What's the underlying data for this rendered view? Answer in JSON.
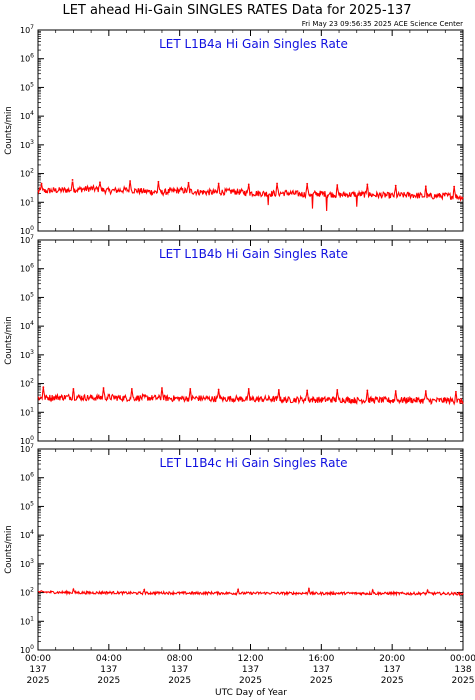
{
  "header": {
    "title": "LET ahead Hi-Gain SINGLES RATES Data for 2025-137",
    "timestamp": "Fri May 23 09:56:35 2025 ACE Science Center"
  },
  "colors": {
    "series": "#ff0000",
    "panel_title": "#1010e0",
    "axes": "#000000"
  },
  "chart_data": [
    {
      "type": "line",
      "title": "LET L1B4a Hi Gain Singles Rate",
      "ylabel": "Counts/min",
      "yscale": "log",
      "ylim": [
        1,
        10000000
      ],
      "ytick_labels": [
        {
          "base": "10",
          "exp": "0"
        },
        {
          "base": "10",
          "exp": "1"
        },
        {
          "base": "10",
          "exp": "2"
        },
        {
          "base": "10",
          "exp": "3"
        },
        {
          "base": "10",
          "exp": "4"
        },
        {
          "base": "10",
          "exp": "5"
        },
        {
          "base": "10",
          "exp": "6"
        },
        {
          "base": "10",
          "exp": "7"
        }
      ],
      "x": [
        0,
        1,
        2,
        3,
        4,
        5,
        6,
        7,
        8,
        9,
        10,
        11,
        12,
        13,
        14,
        15,
        16,
        17,
        18,
        19,
        20,
        21,
        22,
        23,
        24
      ],
      "series": [
        {
          "values": [
            24,
            26,
            27,
            30,
            25,
            27,
            24,
            22,
            26,
            23,
            22,
            24,
            21,
            20,
            21,
            19,
            20,
            18,
            19,
            18,
            17,
            18,
            16,
            17,
            15
          ]
        }
      ],
      "spikes": [
        {
          "x": 0.2,
          "y": 45
        },
        {
          "x": 1.95,
          "y": 60
        },
        {
          "x": 3.5,
          "y": 50
        },
        {
          "x": 5.2,
          "y": 55
        },
        {
          "x": 6.8,
          "y": 52
        },
        {
          "x": 8.5,
          "y": 48
        },
        {
          "x": 10.2,
          "y": 45
        },
        {
          "x": 11.9,
          "y": 42
        },
        {
          "x": 13.5,
          "y": 45
        },
        {
          "x": 15.2,
          "y": 44
        },
        {
          "x": 16.9,
          "y": 40
        },
        {
          "x": 18.6,
          "y": 42
        },
        {
          "x": 20.2,
          "y": 38
        },
        {
          "x": 21.9,
          "y": 36
        },
        {
          "x": 23.5,
          "y": 35
        }
      ],
      "dips": [
        {
          "x": 13.0,
          "y": 8
        },
        {
          "x": 15.5,
          "y": 6
        },
        {
          "x": 16.3,
          "y": 5
        },
        {
          "x": 18.0,
          "y": 7
        }
      ]
    },
    {
      "type": "line",
      "title": "LET L1B4b Hi Gain Singles Rate",
      "ylabel": "Counts/min",
      "yscale": "log",
      "ylim": [
        1,
        10000000
      ],
      "ytick_labels": [
        {
          "base": "10",
          "exp": "0"
        },
        {
          "base": "10",
          "exp": "1"
        },
        {
          "base": "10",
          "exp": "2"
        },
        {
          "base": "10",
          "exp": "3"
        },
        {
          "base": "10",
          "exp": "4"
        },
        {
          "base": "10",
          "exp": "5"
        },
        {
          "base": "10",
          "exp": "6"
        },
        {
          "base": "10",
          "exp": "7"
        }
      ],
      "x": [
        0,
        1,
        2,
        3,
        4,
        5,
        6,
        7,
        8,
        9,
        10,
        11,
        12,
        13,
        14,
        15,
        16,
        17,
        18,
        19,
        20,
        21,
        22,
        23,
        24
      ],
      "series": [
        {
          "values": [
            32,
            33,
            34,
            32,
            33,
            31,
            32,
            31,
            30,
            31,
            29,
            30,
            28,
            29,
            27,
            28,
            27,
            28,
            26,
            27,
            26,
            27,
            25,
            26,
            24
          ]
        }
      ],
      "spikes": [
        {
          "x": 0.3,
          "y": 75
        },
        {
          "x": 2.0,
          "y": 65
        },
        {
          "x": 3.7,
          "y": 70
        },
        {
          "x": 5.3,
          "y": 65
        },
        {
          "x": 7.0,
          "y": 70
        },
        {
          "x": 8.6,
          "y": 65
        },
        {
          "x": 10.2,
          "y": 62
        },
        {
          "x": 11.9,
          "y": 65
        },
        {
          "x": 13.6,
          "y": 60
        },
        {
          "x": 15.2,
          "y": 58
        },
        {
          "x": 16.9,
          "y": 60
        },
        {
          "x": 18.6,
          "y": 58
        },
        {
          "x": 20.2,
          "y": 55
        },
        {
          "x": 21.9,
          "y": 55
        },
        {
          "x": 23.6,
          "y": 52
        }
      ],
      "dips": []
    },
    {
      "type": "line",
      "title": "LET L1B4c Hi Gain Singles Rate",
      "ylabel": "Counts/min",
      "yscale": "log",
      "ylim": [
        1,
        10000000
      ],
      "ytick_labels": [
        {
          "base": "10",
          "exp": "0"
        },
        {
          "base": "10",
          "exp": "1"
        },
        {
          "base": "10",
          "exp": "2"
        },
        {
          "base": "10",
          "exp": "3"
        },
        {
          "base": "10",
          "exp": "4"
        },
        {
          "base": "10",
          "exp": "5"
        },
        {
          "base": "10",
          "exp": "6"
        },
        {
          "base": "10",
          "exp": "7"
        }
      ],
      "x": [
        0,
        1,
        2,
        3,
        4,
        5,
        6,
        7,
        8,
        9,
        10,
        11,
        12,
        13,
        14,
        15,
        16,
        17,
        18,
        19,
        20,
        21,
        22,
        23,
        24
      ],
      "series": [
        {
          "values": [
            105,
            102,
            100,
            98,
            100,
            97,
            95,
            98,
            96,
            95,
            97,
            94,
            95,
            96,
            94,
            95,
            93,
            95,
            94,
            93,
            94,
            92,
            93,
            92,
            91
          ]
        }
      ],
      "spikes": [
        {
          "x": 2.0,
          "y": 130
        },
        {
          "x": 6.0,
          "y": 125
        },
        {
          "x": 11.3,
          "y": 128
        },
        {
          "x": 15.3,
          "y": 135
        },
        {
          "x": 18.9,
          "y": 122
        },
        {
          "x": 22.0,
          "y": 120
        }
      ],
      "dips": []
    }
  ],
  "xaxis": {
    "label": "UTC Day of Year",
    "ticks": [
      {
        "x": 0,
        "time": "00:00",
        "day": "137",
        "year": "2025"
      },
      {
        "x": 4,
        "time": "04:00",
        "day": "137",
        "year": "2025"
      },
      {
        "x": 8,
        "time": "08:00",
        "day": "137",
        "year": "2025"
      },
      {
        "x": 12,
        "time": "12:00",
        "day": "137",
        "year": "2025"
      },
      {
        "x": 16,
        "time": "16:00",
        "day": "137",
        "year": "2025"
      },
      {
        "x": 20,
        "time": "20:00",
        "day": "137",
        "year": "2025"
      },
      {
        "x": 24,
        "time": "00:00",
        "day": "138",
        "year": "2025"
      }
    ],
    "minor_step": 1,
    "range": [
      0,
      24
    ]
  }
}
